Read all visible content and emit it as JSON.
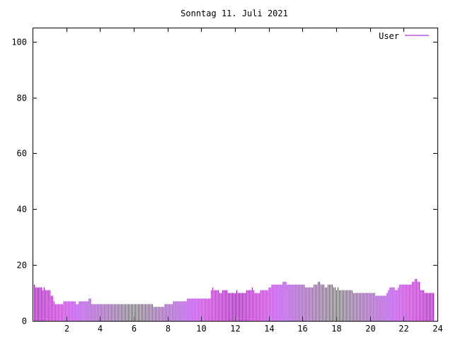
{
  "chart_data": {
    "type": "bar",
    "title": "Sonntag 11. Juli 2021",
    "xlabel": "",
    "ylabel": "",
    "xlim": [
      0,
      24
    ],
    "ylim": [
      0,
      105
    ],
    "xticks": [
      2,
      4,
      6,
      8,
      10,
      12,
      14,
      16,
      18,
      20,
      22,
      24
    ],
    "yticks": [
      0,
      20,
      40,
      60,
      80,
      100
    ],
    "legend_position": "top-right",
    "grid": false,
    "color": "#9400d3",
    "sample_minutes": 5,
    "series": [
      {
        "name": "User",
        "values": [
          14,
          13,
          12,
          12,
          12,
          12,
          12,
          11,
          12,
          11,
          11,
          11,
          11,
          9,
          9,
          7,
          6,
          6,
          6,
          6,
          6,
          6,
          7,
          7,
          7,
          7,
          7,
          7,
          7,
          7,
          7,
          6,
          6,
          7,
          7,
          7,
          7,
          7,
          7,
          7,
          8,
          8,
          6,
          6,
          6,
          6,
          6,
          6,
          6,
          6,
          6,
          6,
          6,
          6,
          6,
          6,
          6,
          6,
          6,
          6,
          6,
          6,
          6,
          6,
          6,
          6,
          6,
          6,
          6,
          6,
          6,
          6,
          6,
          6,
          6,
          6,
          6,
          6,
          6,
          6,
          6,
          6,
          6,
          6,
          6,
          6,
          5,
          5,
          5,
          5,
          5,
          5,
          5,
          5,
          6,
          6,
          6,
          6,
          6,
          6,
          7,
          7,
          7,
          7,
          7,
          7,
          7,
          7,
          7,
          7,
          8,
          8,
          8,
          8,
          8,
          8,
          8,
          8,
          8,
          8,
          8,
          8,
          8,
          8,
          8,
          8,
          8,
          11,
          12,
          11,
          11,
          11,
          11,
          10,
          10,
          11,
          11,
          11,
          11,
          10,
          10,
          10,
          10,
          10,
          10,
          11,
          10,
          10,
          10,
          10,
          10,
          10,
          11,
          11,
          11,
          11,
          12,
          11,
          10,
          10,
          10,
          10,
          11,
          11,
          11,
          11,
          11,
          11,
          12,
          12,
          13,
          13,
          13,
          13,
          13,
          13,
          13,
          13,
          14,
          14,
          14,
          13,
          13,
          13,
          13,
          13,
          13,
          13,
          13,
          13,
          13,
          13,
          13,
          13,
          12,
          12,
          12,
          12,
          12,
          12,
          13,
          13,
          13,
          14,
          14,
          13,
          13,
          13,
          12,
          12,
          13,
          13,
          13,
          13,
          12,
          12,
          11,
          12,
          11,
          11,
          11,
          11,
          11,
          11,
          11,
          11,
          11,
          11,
          10,
          10,
          10,
          10,
          10,
          10,
          10,
          10,
          10,
          10,
          10,
          10,
          10,
          10,
          10,
          10,
          9,
          9,
          9,
          9,
          9,
          9,
          9,
          9,
          10,
          11,
          12,
          12,
          12,
          12,
          11,
          11,
          12,
          13,
          13,
          13,
          13,
          13,
          13,
          13,
          13,
          13,
          14,
          14,
          15,
          15,
          14,
          14,
          11,
          11,
          11,
          10,
          10,
          10,
          10,
          10,
          10,
          10
        ]
      }
    ]
  }
}
